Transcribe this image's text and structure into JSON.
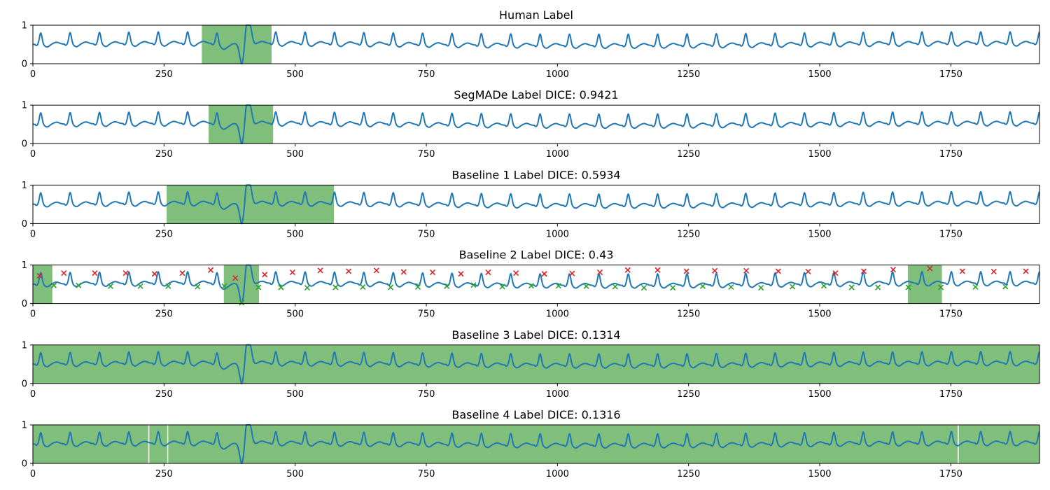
{
  "chart_data": {
    "type": "line",
    "signal": {
      "color": "#1f77b4",
      "x_range": [
        0,
        1919
      ],
      "y_range": [
        0,
        1
      ],
      "beat_period": 56,
      "baseline_level": 0.5,
      "peak_level": 0.8,
      "anomaly_center": 405,
      "anomaly_min": 0.0,
      "anomaly_max": 1.0
    },
    "highlight_color": "#7fbf7b",
    "xticks": [
      0,
      250,
      500,
      750,
      1000,
      1250,
      1500,
      1750
    ],
    "yticks": [
      0,
      1
    ],
    "panels": [
      {
        "title": "Human Label",
        "regions": [
          [
            322,
            455
          ]
        ]
      },
      {
        "title": "SegMADe Label DICE: 0.9421",
        "regions": [
          [
            335,
            458
          ]
        ]
      },
      {
        "title": "Baseline 1 Label DICE: 0.5934",
        "regions": [
          [
            255,
            574
          ]
        ]
      },
      {
        "title": "Baseline 2 Label DICE: 0.43",
        "regions": [
          [
            0,
            37
          ],
          [
            364,
            431
          ],
          [
            1668,
            1733
          ]
        ],
        "red_markers": [
          [
            13,
            0.72
          ],
          [
            59,
            0.79
          ],
          [
            118,
            0.79
          ],
          [
            177,
            0.79
          ],
          [
            232,
            0.77
          ],
          [
            285,
            0.79
          ],
          [
            339,
            0.87
          ],
          [
            386,
            0.66
          ],
          [
            442,
            0.75
          ],
          [
            495,
            0.81
          ],
          [
            548,
            0.86
          ],
          [
            602,
            0.84
          ],
          [
            655,
            0.86
          ],
          [
            707,
            0.82
          ],
          [
            762,
            0.81
          ],
          [
            816,
            0.77
          ],
          [
            868,
            0.81
          ],
          [
            921,
            0.79
          ],
          [
            975,
            0.77
          ],
          [
            1028,
            0.78
          ],
          [
            1081,
            0.81
          ],
          [
            1134,
            0.87
          ],
          [
            1191,
            0.87
          ],
          [
            1246,
            0.84
          ],
          [
            1300,
            0.85
          ],
          [
            1360,
            0.85
          ],
          [
            1421,
            0.84
          ],
          [
            1478,
            0.83
          ],
          [
            1530,
            0.79
          ],
          [
            1584,
            0.84
          ],
          [
            1640,
            0.88
          ],
          [
            1710,
            0.91
          ],
          [
            1772,
            0.84
          ],
          [
            1832,
            0.83
          ],
          [
            1893,
            0.84
          ]
        ],
        "green_markers": [
          [
            40,
            0.47
          ],
          [
            87,
            0.47
          ],
          [
            148,
            0.45
          ],
          [
            205,
            0.45
          ],
          [
            258,
            0.45
          ],
          [
            314,
            0.44
          ],
          [
            365,
            0.45
          ],
          [
            398,
            0.02
          ],
          [
            430,
            0.42
          ],
          [
            473,
            0.42
          ],
          [
            523,
            0.41
          ],
          [
            577,
            0.42
          ],
          [
            629,
            0.43
          ],
          [
            682,
            0.42
          ],
          [
            734,
            0.43
          ],
          [
            789,
            0.45
          ],
          [
            840,
            0.48
          ],
          [
            895,
            0.44
          ],
          [
            950,
            0.46
          ],
          [
            1002,
            0.46
          ],
          [
            1055,
            0.45
          ],
          [
            1110,
            0.44
          ],
          [
            1165,
            0.41
          ],
          [
            1220,
            0.41
          ],
          [
            1277,
            0.45
          ],
          [
            1331,
            0.43
          ],
          [
            1388,
            0.41
          ],
          [
            1448,
            0.44
          ],
          [
            1508,
            0.46
          ],
          [
            1561,
            0.42
          ],
          [
            1611,
            0.42
          ],
          [
            1669,
            0.42
          ],
          [
            1731,
            0.42
          ],
          [
            1797,
            0.43
          ],
          [
            1854,
            0.44
          ]
        ]
      },
      {
        "title": "Baseline 3 Label DICE: 0.1314",
        "regions": [
          [
            0,
            1919
          ]
        ]
      },
      {
        "title": "Baseline 4 Label DICE: 0.1316",
        "regions": [
          [
            0,
            220
          ],
          [
            222,
            256
          ],
          [
            258,
            1763
          ],
          [
            1765,
            1919
          ]
        ]
      }
    ]
  }
}
